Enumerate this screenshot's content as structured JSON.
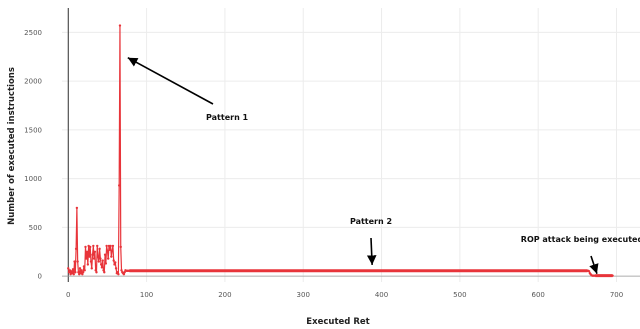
{
  "chart_data": {
    "type": "line",
    "title": "",
    "xlabel": "Executed Ret",
    "ylabel": "Number of executed instructions",
    "xlim": [
      -8,
      730
    ],
    "ylim": [
      -60,
      2750
    ],
    "xticks": [
      0,
      100,
      200,
      300,
      400,
      500,
      600,
      700
    ],
    "yticks": [
      0,
      500,
      1000,
      1500,
      2000,
      2500
    ],
    "grid": true,
    "legend": "none",
    "color": "#e8343a",
    "series": [
      {
        "x": [
          0,
          1,
          2,
          3,
          4,
          5,
          6,
          7,
          8,
          9,
          10,
          11,
          12,
          13,
          14,
          15,
          16,
          17,
          18,
          19,
          20,
          21,
          22,
          23,
          24,
          25,
          26,
          27,
          28,
          29,
          30,
          31,
          32,
          33,
          34,
          35,
          36,
          37,
          38,
          39,
          40,
          41,
          42,
          43,
          44,
          45,
          46,
          47,
          48,
          49,
          50,
          51,
          52,
          53,
          54,
          55,
          56,
          57,
          58,
          59,
          60,
          61,
          62,
          63,
          64,
          65,
          66,
          67,
          68,
          69,
          70,
          71,
          72,
          73,
          74,
          75,
          76,
          77,
          78,
          79,
          80,
          81,
          82,
          83,
          84,
          85,
          663,
          664,
          665,
          666,
          667,
          668,
          669,
          670,
          671,
          672,
          673,
          674,
          675,
          680,
          690,
          695
        ],
        "y": [
          80,
          40,
          60,
          20,
          50,
          30,
          70,
          20,
          150,
          40,
          280,
          700,
          150,
          40,
          20,
          80,
          30,
          60,
          20,
          40,
          100,
          60,
          300,
          180,
          250,
          120,
          310,
          200,
          300,
          150,
          80,
          220,
          310,
          180,
          250,
          60,
          40,
          310,
          200,
          150,
          280,
          180,
          120,
          90,
          160,
          60,
          40,
          220,
          130,
          310,
          260,
          180,
          310,
          270,
          310,
          200,
          260,
          310,
          160,
          120,
          140,
          80,
          30,
          40,
          20,
          930,
          2570,
          300,
          60,
          40,
          30,
          20,
          40,
          60,
          55,
          55,
          55,
          55,
          55,
          55,
          55,
          55,
          55,
          55,
          55,
          55,
          55,
          55,
          50,
          30,
          20,
          10,
          5,
          5,
          5,
          5,
          5,
          5,
          5,
          5,
          5,
          5
        ]
      }
    ],
    "annotations": [
      {
        "text": "Pattern 1",
        "point": [
          76,
          2240
        ]
      },
      {
        "text": "Pattern 2",
        "point": [
          388,
          115
        ]
      },
      {
        "text": "ROP attack being executed",
        "point": [
          675,
          25
        ]
      }
    ]
  }
}
